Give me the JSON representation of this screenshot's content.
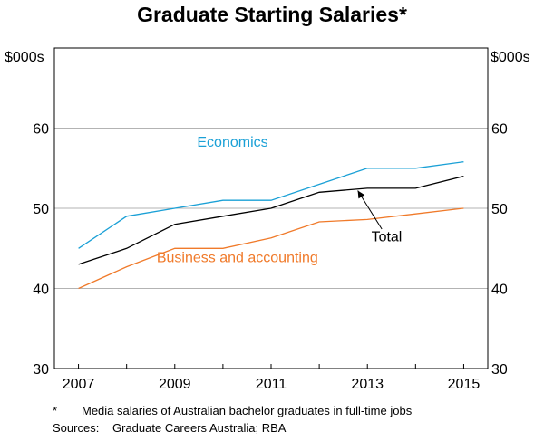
{
  "title": "Graduate Starting Salaries*",
  "footnote": {
    "marker": "*",
    "text": "Media salaries of Australian bachelor graduates in full-time jobs"
  },
  "sources": {
    "label": "Sources:",
    "text": "Graduate Careers Australia; RBA"
  },
  "chart_data": {
    "type": "line",
    "title": "Graduate Starting Salaries*",
    "y_unit_left": "$000s",
    "y_unit_right": "$000s",
    "ylim": [
      30,
      70
    ],
    "yticks": [
      30,
      40,
      50,
      60
    ],
    "xlim": [
      2006.5,
      2015.5
    ],
    "xticks": [
      2007,
      2009,
      2011,
      2013,
      2015
    ],
    "x_tick_labels": [
      "2007",
      "2009",
      "2011",
      "2013",
      "2015"
    ],
    "grid": "horizontal",
    "series": [
      {
        "name": "Economics",
        "color": "#1aa0d6",
        "x": [
          2007,
          2008,
          2009,
          2010,
          2011,
          2012,
          2013,
          2014,
          2015
        ],
        "values": [
          45,
          49,
          50,
          51,
          51,
          53,
          55,
          55,
          55.8
        ]
      },
      {
        "name": "Total",
        "color": "#000000",
        "x": [
          2007,
          2008,
          2009,
          2010,
          2011,
          2012,
          2013,
          2014,
          2015
        ],
        "values": [
          43,
          45,
          48,
          49,
          50,
          52,
          52.5,
          52.5,
          54
        ]
      },
      {
        "name": "Business and accounting",
        "color": "#f07a2a",
        "x": [
          2007,
          2008,
          2009,
          2010,
          2011,
          2012,
          2013,
          2014,
          2015
        ],
        "values": [
          40,
          42.7,
          45,
          45,
          46.3,
          48.3,
          48.6,
          49.3,
          50
        ]
      }
    ]
  }
}
